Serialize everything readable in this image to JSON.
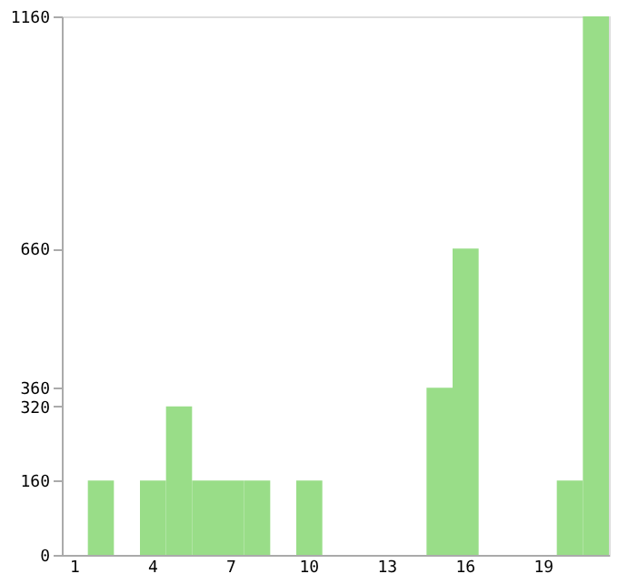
{
  "chart_data": {
    "type": "bar",
    "categories": [
      "1",
      null,
      null,
      "4",
      null,
      null,
      "7",
      null,
      null,
      "10",
      null,
      null,
      "13",
      null,
      null,
      "16",
      null,
      null,
      "19",
      null,
      null
    ],
    "values": [
      0,
      160,
      0,
      160,
      320,
      160,
      160,
      160,
      0,
      160,
      0,
      0,
      0,
      0,
      360,
      660,
      0,
      0,
      0,
      160,
      1160
    ],
    "color": "#99dd88",
    "ylim": [
      0,
      1160
    ],
    "yticks": [
      0,
      160,
      320,
      360,
      660,
      1160
    ],
    "grid": false
  }
}
